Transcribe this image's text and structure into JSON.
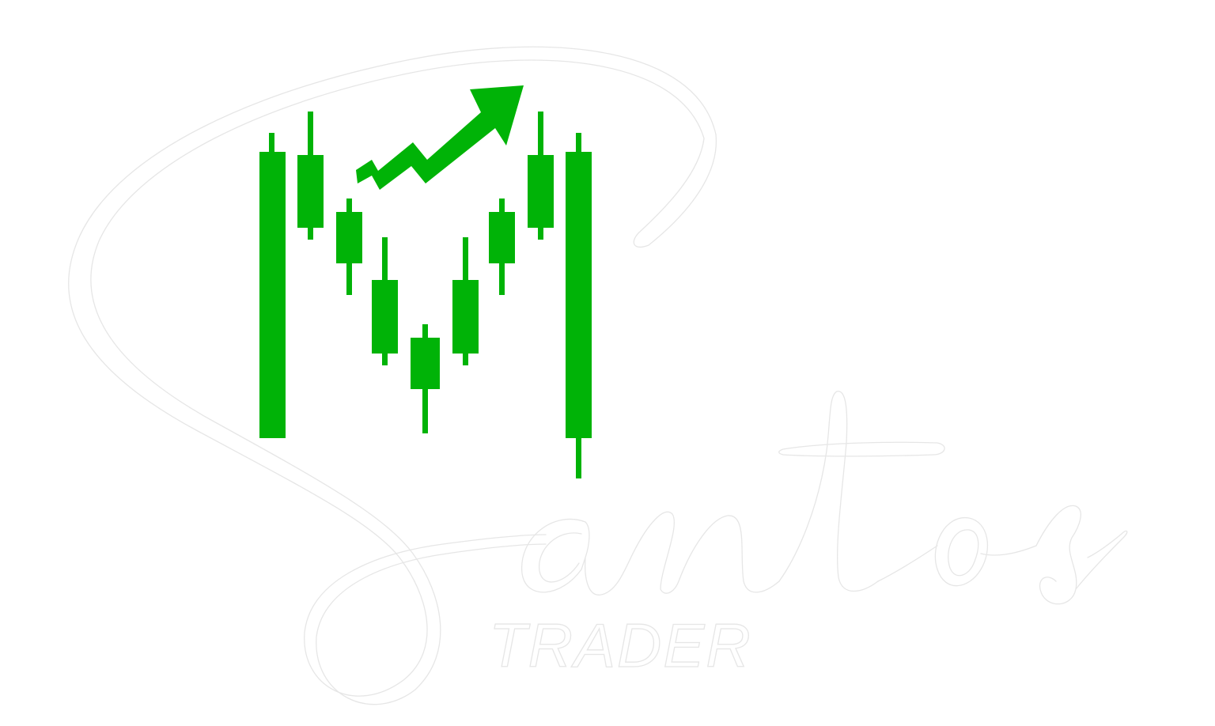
{
  "logo": {
    "script_word": "Santos",
    "sub_word": "TRADER",
    "brand_color": "#00b307",
    "outline_color": "#e6e6e6",
    "background": "#ffffff",
    "icon": "candlestick-m-with-up-arrow-icon"
  }
}
